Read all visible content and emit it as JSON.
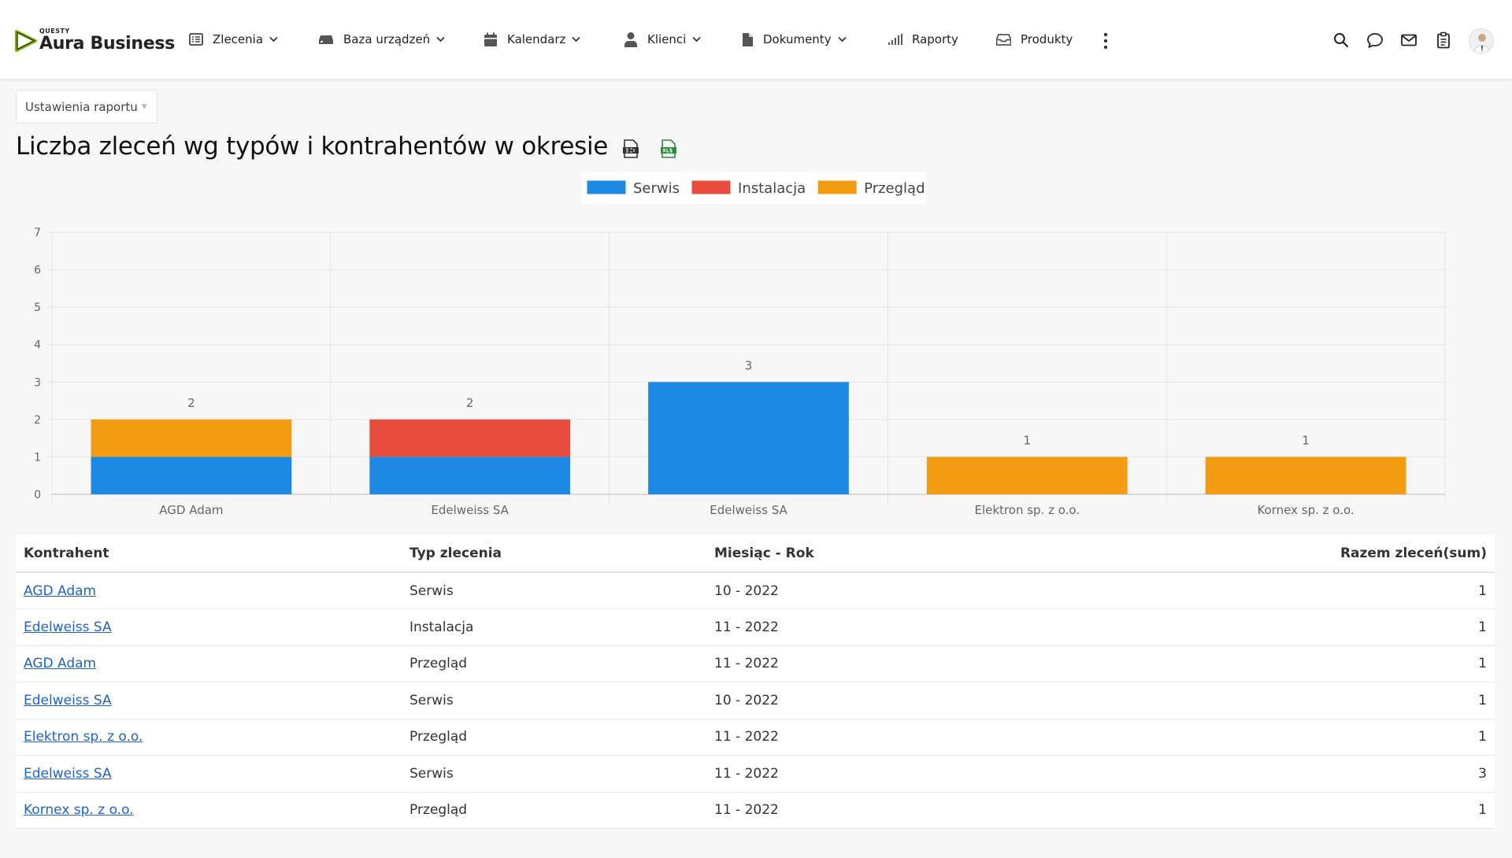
{
  "brand": {
    "sup": "QUESTY",
    "name": "Aura Business",
    "accent": "#7ab800"
  },
  "nav": [
    {
      "id": "zlecenia",
      "label": "Zlecenia",
      "icon": "list-icon",
      "dropdown": true
    },
    {
      "id": "baza",
      "label": "Baza urządzeń",
      "icon": "device-icon",
      "dropdown": true
    },
    {
      "id": "kalendarz",
      "label": "Kalendarz",
      "icon": "calendar-icon",
      "dropdown": true
    },
    {
      "id": "klienci",
      "label": "Klienci",
      "icon": "user-icon",
      "dropdown": true
    },
    {
      "id": "dokumenty",
      "label": "Dokumenty",
      "icon": "document-icon",
      "dropdown": true
    },
    {
      "id": "raporty",
      "label": "Raporty",
      "icon": "signal-icon",
      "dropdown": false
    },
    {
      "id": "produkty",
      "label": "Produkty",
      "icon": "tray-icon",
      "dropdown": false
    }
  ],
  "tools": [
    "search-icon",
    "chat-icon",
    "mail-icon",
    "clipboard-icon",
    "avatar"
  ],
  "settings": {
    "label": "Ustawienia raportu"
  },
  "report": {
    "title": "Liczba zleceń wg typów i kontrahentów w okresie",
    "exports": [
      "csv-export-icon",
      "xls-export-icon"
    ]
  },
  "chart_data": {
    "type": "bar",
    "stacked": true,
    "categories": [
      "AGD Adam",
      "Edelweiss SA",
      "Edelweiss SA",
      "Elektron sp. z o.o.",
      "Kornex sp. z o.o."
    ],
    "series": [
      {
        "name": "Serwis",
        "color": "#1e88e5",
        "values": [
          1,
          1,
          3,
          0,
          0
        ]
      },
      {
        "name": "Instalacja",
        "color": "#e74c3c",
        "values": [
          0,
          1,
          0,
          0,
          0
        ]
      },
      {
        "name": "Przegląd",
        "color": "#f39c12",
        "values": [
          1,
          0,
          0,
          1,
          1
        ]
      }
    ],
    "totals": [
      2,
      2,
      3,
      1,
      1
    ],
    "ylim": [
      0,
      7
    ],
    "yticks": [
      0,
      1,
      2,
      3,
      4,
      5,
      6,
      7
    ],
    "legend": "top-center",
    "grid": true
  },
  "table": {
    "headers": [
      "Kontrahent",
      "Typ zlecenia",
      "Miesiąc - Rok",
      "Razem zleceń(sum)"
    ],
    "rows": [
      [
        "AGD Adam",
        "Serwis",
        "10 - 2022",
        "1"
      ],
      [
        "Edelweiss SA",
        "Instalacja",
        "11 - 2022",
        "1"
      ],
      [
        "AGD Adam",
        "Przegląd",
        "11 - 2022",
        "1"
      ],
      [
        "Edelweiss SA",
        "Serwis",
        "10 - 2022",
        "1"
      ],
      [
        "Elektron sp. z o.o.",
        "Przegląd",
        "11 - 2022",
        "1"
      ],
      [
        "Edelweiss SA",
        "Serwis",
        "11 - 2022",
        "3"
      ],
      [
        "Kornex sp. z o.o.",
        "Przegląd",
        "11 - 2022",
        "1"
      ]
    ]
  }
}
